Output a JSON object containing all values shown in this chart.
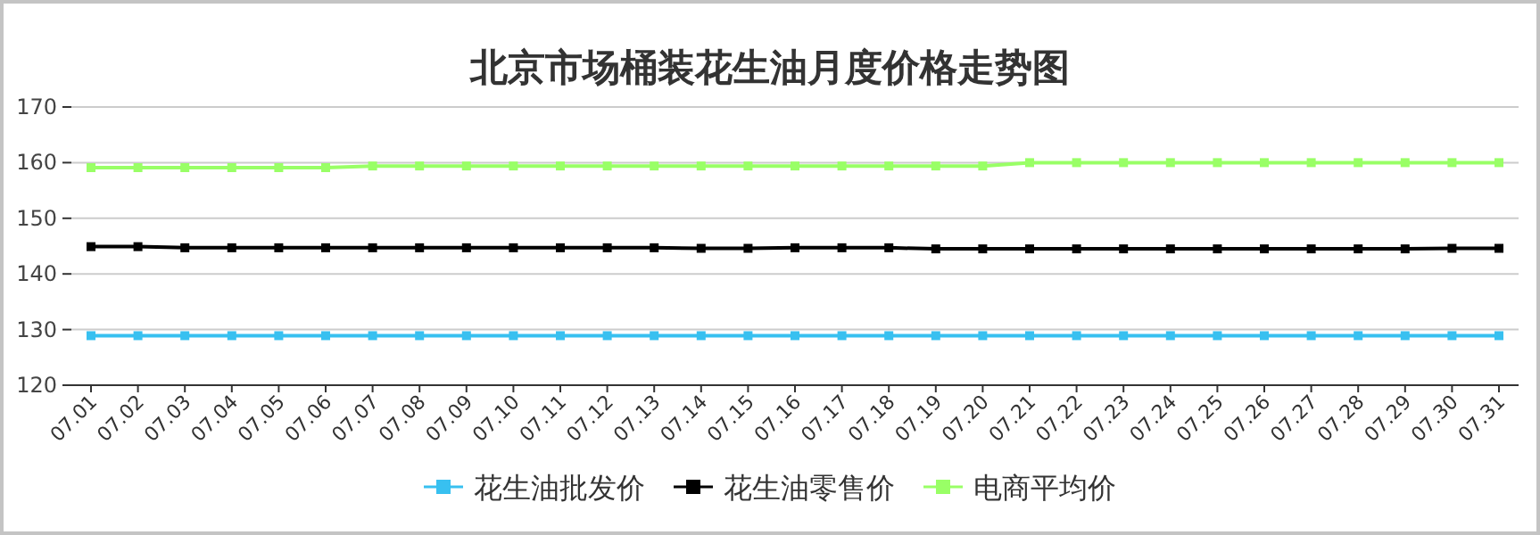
{
  "chart_data": {
    "type": "line",
    "title": "北京市场桶装花生油月度价格走势图",
    "categories": [
      "07.01",
      "07.02",
      "07.03",
      "07.04",
      "07.05",
      "07.06",
      "07.07",
      "07.08",
      "07.09",
      "07.10",
      "07.11",
      "07.12",
      "07.13",
      "07.14",
      "07.15",
      "07.16",
      "07.17",
      "07.18",
      "07.19",
      "07.20",
      "07.21",
      "07.22",
      "07.23",
      "07.24",
      "07.25",
      "07.26",
      "07.27",
      "07.28",
      "07.29",
      "07.30",
      "07.31"
    ],
    "series": [
      {
        "name": "花生油批发价",
        "color": "#38c0f0",
        "values": [
          128.9,
          128.9,
          128.9,
          128.9,
          128.9,
          128.9,
          128.9,
          128.9,
          128.9,
          128.9,
          128.9,
          128.9,
          128.9,
          128.9,
          128.9,
          128.9,
          128.9,
          128.9,
          128.9,
          128.9,
          128.9,
          128.9,
          128.9,
          128.9,
          128.9,
          128.9,
          128.9,
          128.9,
          128.9,
          128.9,
          128.9
        ]
      },
      {
        "name": "花生油零售价",
        "color": "#000000",
        "values": [
          144.9,
          144.9,
          144.7,
          144.7,
          144.7,
          144.7,
          144.7,
          144.7,
          144.7,
          144.7,
          144.7,
          144.7,
          144.7,
          144.6,
          144.6,
          144.7,
          144.7,
          144.7,
          144.5,
          144.5,
          144.5,
          144.5,
          144.5,
          144.5,
          144.5,
          144.5,
          144.5,
          144.5,
          144.5,
          144.6,
          144.6
        ]
      },
      {
        "name": "电商平均价",
        "color": "#99ff66",
        "values": [
          159.1,
          159.1,
          159.1,
          159.1,
          159.1,
          159.1,
          159.4,
          159.4,
          159.4,
          159.4,
          159.4,
          159.4,
          159.4,
          159.4,
          159.4,
          159.4,
          159.4,
          159.4,
          159.4,
          159.4,
          160.0,
          160.0,
          160.0,
          160.0,
          160.0,
          160.0,
          160.0,
          160.0,
          160.0,
          160.0,
          160.0
        ]
      }
    ],
    "ylim": [
      120,
      170
    ],
    "yticks": [
      120,
      130,
      140,
      150,
      160,
      170
    ],
    "grid": "y",
    "legend": "bottom",
    "marker": "square",
    "line_style": "solid"
  }
}
